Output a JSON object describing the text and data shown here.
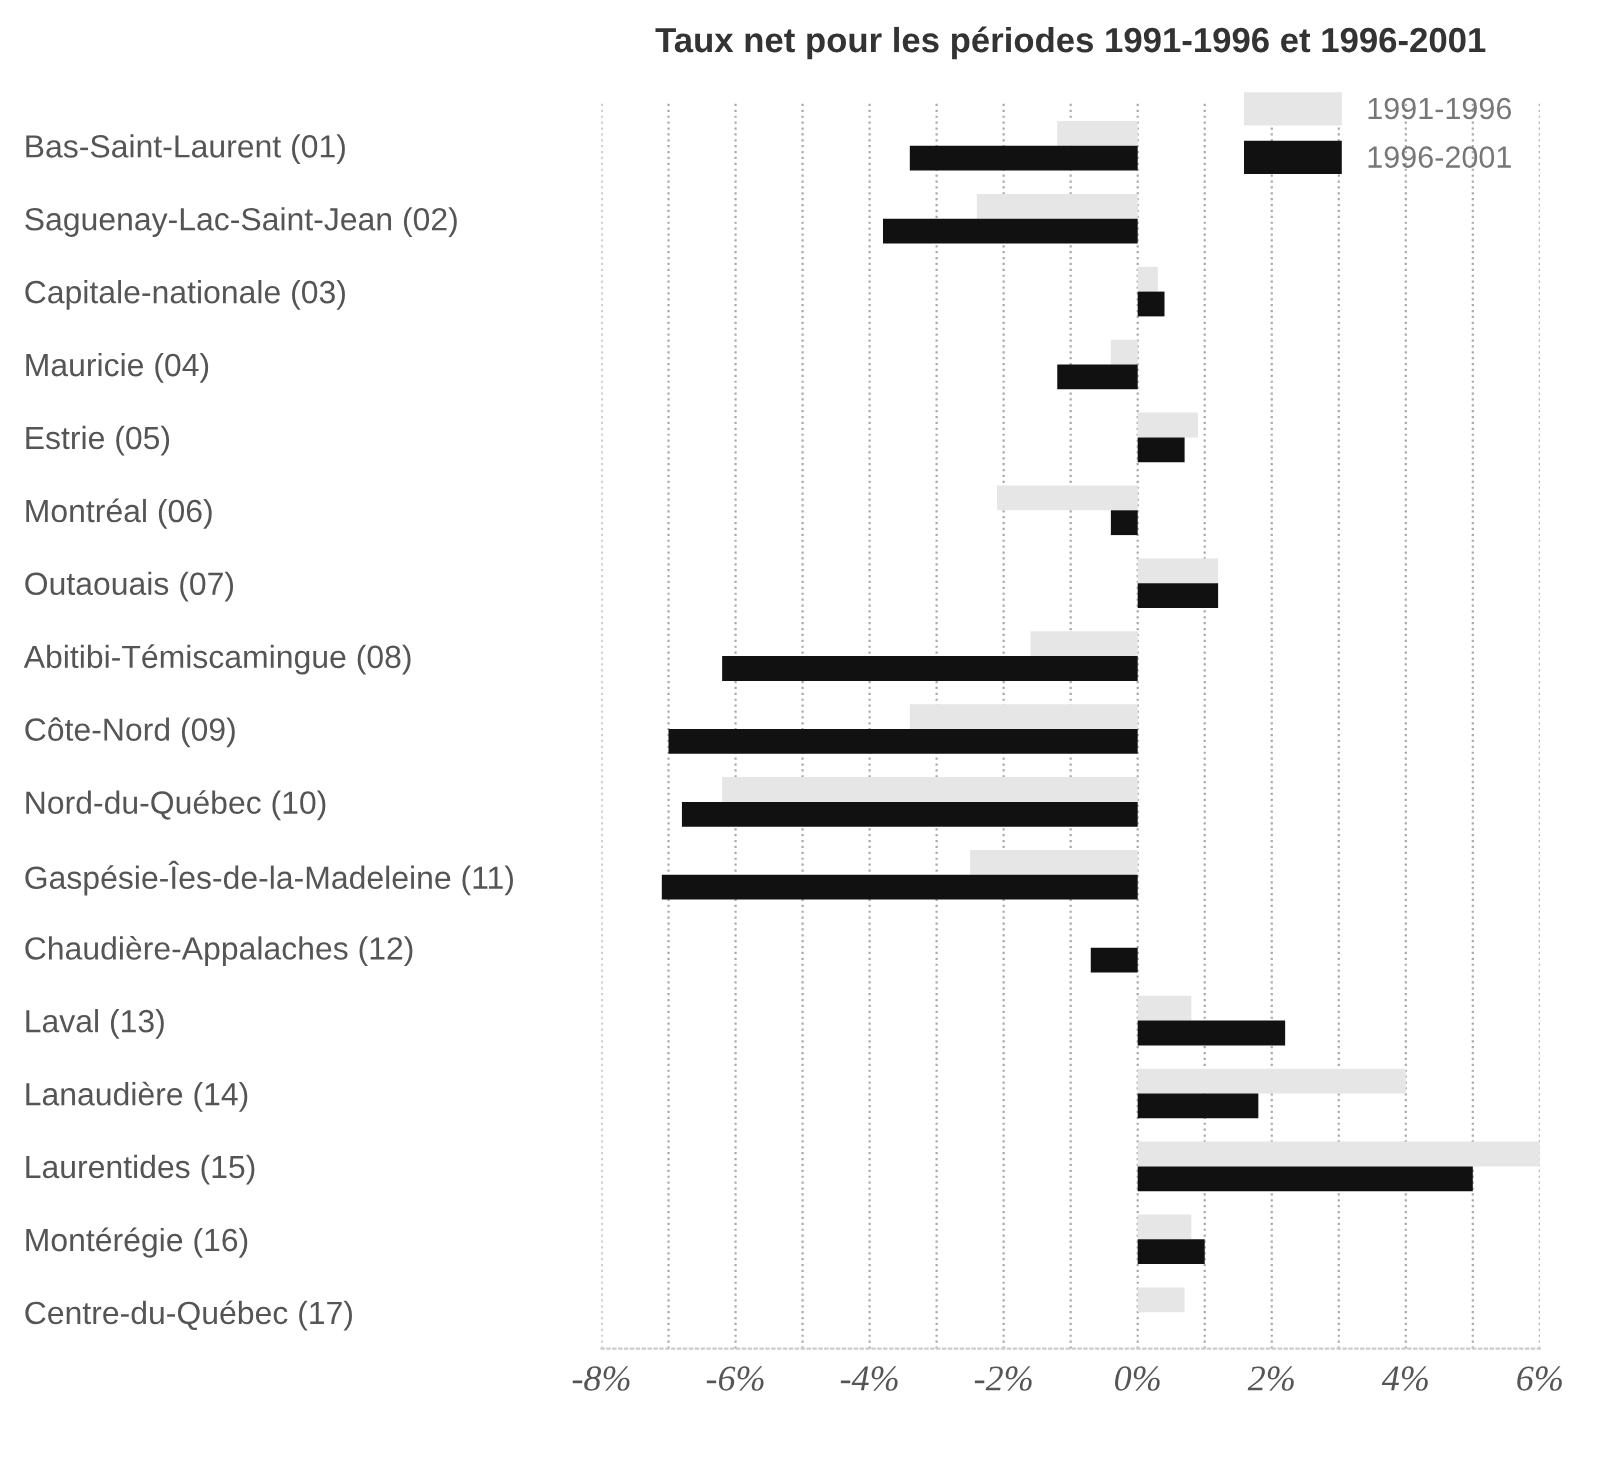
{
  "chart_data": {
    "type": "bar",
    "orientation": "horizontal",
    "title": "Taux net pour les périodes 1991-1996 et 1996-2001",
    "categories": [
      "Bas-Saint-Laurent (01)",
      "Saguenay-Lac-Saint-Jean (02)",
      "Capitale-nationale (03)",
      "Mauricie (04)",
      "Estrie (05)",
      "Montréal (06)",
      "Outaouais (07)",
      "Abitibi-Témiscamingue (08)",
      "Côte-Nord (09)",
      "Nord-du-Québec (10)",
      "Gaspésie-Îes-de-la-Madeleine (11)",
      "Chaudière-Appalaches (12)",
      "Laval (13)",
      "Lanaudière (14)",
      "Laurentides (15)",
      "Montérégie (16)",
      "Centre-du-Québec (17)"
    ],
    "series": [
      {
        "name": "1991-1996",
        "color": "#e6e6e6",
        "values": [
          -1.2,
          -2.4,
          0.3,
          -0.4,
          0.9,
          -2.1,
          1.2,
          -1.6,
          -3.4,
          -6.2,
          -2.5,
          null,
          0.8,
          4.0,
          6.0,
          0.8,
          0.7
        ]
      },
      {
        "name": "1996-2001",
        "color": "#111111",
        "values": [
          -3.4,
          -3.8,
          0.4,
          -1.2,
          0.7,
          -0.4,
          1.2,
          -6.2,
          -7.0,
          -6.8,
          -7.1,
          -0.7,
          2.2,
          1.8,
          5.0,
          1.0,
          null
        ]
      }
    ],
    "xlim": [
      -8,
      6
    ],
    "xticks": [
      {
        "value": -8,
        "label": "-8%"
      },
      {
        "value": -7,
        "label": null
      },
      {
        "value": -6,
        "label": "-6%"
      },
      {
        "value": -5,
        "label": null
      },
      {
        "value": -4,
        "label": "-4%"
      },
      {
        "value": -3,
        "label": null
      },
      {
        "value": -2,
        "label": "-2%"
      },
      {
        "value": -1,
        "label": null
      },
      {
        "value": 0,
        "label": "0%"
      },
      {
        "value": 1,
        "label": null
      },
      {
        "value": 2,
        "label": "2%"
      },
      {
        "value": 3,
        "label": null
      },
      {
        "value": 4,
        "label": "4%"
      },
      {
        "value": 5,
        "label": null
      },
      {
        "value": 6,
        "label": "6%"
      }
    ],
    "grid": "x",
    "legend": "top right"
  }
}
